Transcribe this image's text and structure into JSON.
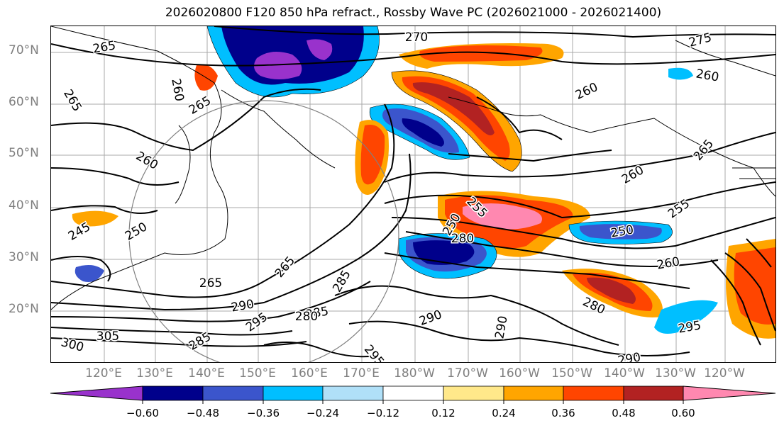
{
  "title": "2026020800 F120 850 hPa refract., Rossby Wave PC (2026021000 - 2026021400)",
  "map": {
    "lat_labels": [
      "70°N",
      "60°N",
      "50°N",
      "40°N",
      "30°N",
      "20°N"
    ],
    "lon_labels": [
      "120°E",
      "130°E",
      "140°E",
      "150°E",
      "160°E",
      "170°E",
      "180°W",
      "170°W",
      "160°W",
      "150°W",
      "140°W",
      "130°W",
      "120°W"
    ],
    "contour_labels": [
      "270",
      "275",
      "265",
      "260",
      "265",
      "265",
      "260",
      "260",
      "265",
      "255",
      "260",
      "250",
      "255",
      "250",
      "260",
      "260",
      "245",
      "250",
      "265",
      "285",
      "280",
      "265",
      "290",
      "285",
      "280",
      "290",
      "290",
      "295",
      "305",
      "300",
      "295",
      "280",
      "295",
      "285",
      "290"
    ],
    "projection": "equirectangular",
    "contour_field": "850 hPa refractivity",
    "shaded_field": "Rossby Wave PC"
  },
  "colorbar": {
    "colors": [
      "#9932cc",
      "#00008b",
      "#3b55cc",
      "#00bfff",
      "#b0e0f8",
      "#ffffff",
      "#ffe88a",
      "#ffa500",
      "#ff4500",
      "#b22222",
      "#ff88b0"
    ],
    "tick_labels": [
      "−0.60",
      "−0.48",
      "−0.36",
      "−0.24",
      "−0.12",
      "0.12",
      "0.24",
      "0.36",
      "0.48",
      "0.60"
    ],
    "ticks": [
      -0.6,
      -0.48,
      -0.36,
      -0.24,
      -0.12,
      0.12,
      0.24,
      0.36,
      0.48,
      0.6
    ],
    "extend": "both"
  }
}
